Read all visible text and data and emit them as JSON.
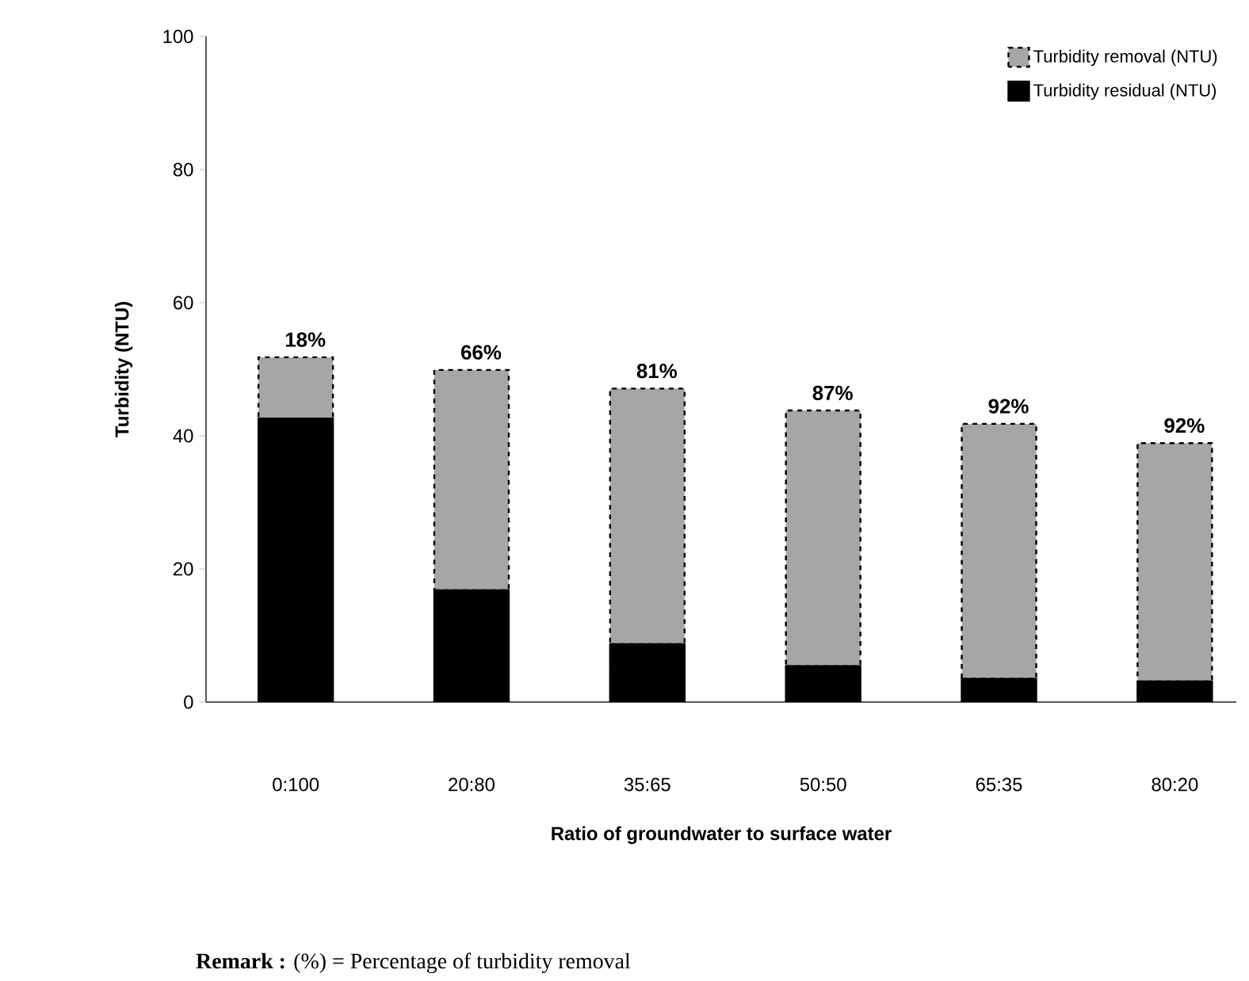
{
  "chart_data": {
    "type": "bar",
    "stacked": true,
    "xlabel": "Ratio of groundwater to surface water",
    "ylabel": "Turbidity (NTU)",
    "categories": [
      "0:100",
      "20:80",
      "35:65",
      "50:50",
      "65:35",
      "80:20"
    ],
    "series": [
      {
        "name": "Turbidity residual (NTU)",
        "color": "#000000",
        "values": [
          42.6,
          16.8,
          8.7,
          5.4,
          3.5,
          3.1
        ]
      },
      {
        "name": "Turbidity removal (NTU)",
        "color": "#a6a6a6",
        "line_style": "dashed",
        "values": [
          9.2,
          33.1,
          38.4,
          38.4,
          38.3,
          35.8
        ]
      }
    ],
    "ylim": [
      0,
      100
    ],
    "yticks": [
      0,
      20,
      40,
      60,
      80,
      100
    ],
    "grid": false,
    "legend": "top right",
    "annotations": [
      "**Remark :**    (%)  =   Percentage of turbidity removal",
      {
        "text": "18%",
        "x": "0:100",
        "y": 51.8
      },
      {
        "text": "66%",
        "x": "20:80",
        "y": 49.9
      },
      {
        "text": "81%",
        "x": "35:65",
        "y": 47.1
      },
      {
        "text": "87%",
        "x": "50:50",
        "y": 43.8
      },
      {
        "text": "92%",
        "x": "65:35",
        "y": 41.8
      },
      {
        "text": "92%",
        "x": "80:20",
        "y": 38.9
      }
    ]
  }
}
